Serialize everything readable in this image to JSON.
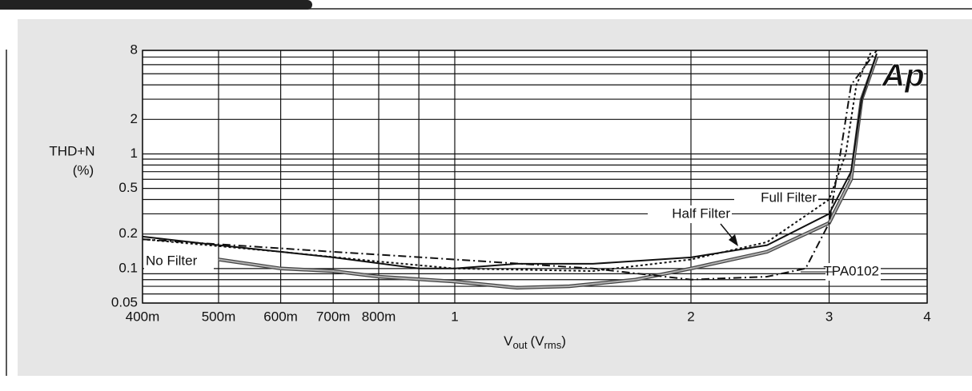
{
  "chart_data": {
    "type": "line",
    "ylabel": [
      "THD+N",
      "(%)"
    ],
    "xlabel_parts": [
      "V",
      "out",
      "(V",
      "rms",
      ")"
    ],
    "logo": "Ap",
    "xlog": true,
    "ylog": true,
    "grid": true,
    "xlim": [
      0.4,
      4
    ],
    "ylim": [
      0.05,
      8
    ],
    "xticks": [
      {
        "value": 0.4,
        "label": "400m"
      },
      {
        "value": 0.5,
        "label": "500m"
      },
      {
        "value": 0.6,
        "label": "600m"
      },
      {
        "value": 0.7,
        "label": "700m"
      },
      {
        "value": 0.8,
        "label": "800m"
      },
      1,
      2,
      3,
      4
    ],
    "x_minor_ticks": [
      0.9
    ],
    "yticks": [
      0.05,
      0.1,
      0.2,
      0.5,
      1,
      2,
      8
    ],
    "y_minor_ticks": [
      0.06,
      0.07,
      0.08,
      0.09,
      0.3,
      0.4,
      0.6,
      0.7,
      0.8,
      0.9,
      3,
      4,
      5,
      6,
      7
    ],
    "series": [
      {
        "name": "No Filter",
        "color": "#b0b0b0",
        "style": "double",
        "x": [
          0.5,
          0.6,
          0.7,
          0.8,
          1,
          1.2,
          1.4,
          1.7,
          2,
          2.5,
          3,
          3.2,
          3.3,
          3.45
        ],
        "values": [
          0.12,
          0.1,
          0.095,
          0.085,
          0.077,
          0.068,
          0.07,
          0.08,
          0.1,
          0.14,
          0.25,
          0.6,
          3,
          7
        ]
      },
      {
        "name": "Half Filter",
        "color": "#111111",
        "style": "solid",
        "x": [
          0.4,
          0.5,
          0.6,
          0.7,
          0.9,
          1,
          1.2,
          1.5,
          2,
          2.5,
          3,
          3.2,
          3.3,
          3.45
        ],
        "values": [
          0.19,
          0.16,
          0.14,
          0.125,
          0.1,
          0.1,
          0.11,
          0.11,
          0.125,
          0.16,
          0.3,
          0.7,
          3,
          7.5
        ]
      },
      {
        "name": "Full Filter",
        "color": "#111111",
        "style": "dotted",
        "x": [
          0.4,
          0.6,
          0.8,
          1,
          1.5,
          2,
          2.5,
          3,
          3.15,
          3.25,
          3.4
        ],
        "values": [
          0.18,
          0.14,
          0.115,
          0.1,
          0.095,
          0.12,
          0.17,
          0.4,
          1,
          4,
          8
        ]
      },
      {
        "name": "TPA0102",
        "color": "#111111",
        "style": "dashdot",
        "x": [
          0.4,
          0.7,
          1,
          1.5,
          2,
          2.5,
          2.8,
          3,
          3.1,
          3.2,
          3.45
        ],
        "values": [
          0.18,
          0.14,
          0.12,
          0.1,
          0.08,
          0.085,
          0.1,
          0.25,
          1,
          4,
          8
        ]
      }
    ]
  }
}
